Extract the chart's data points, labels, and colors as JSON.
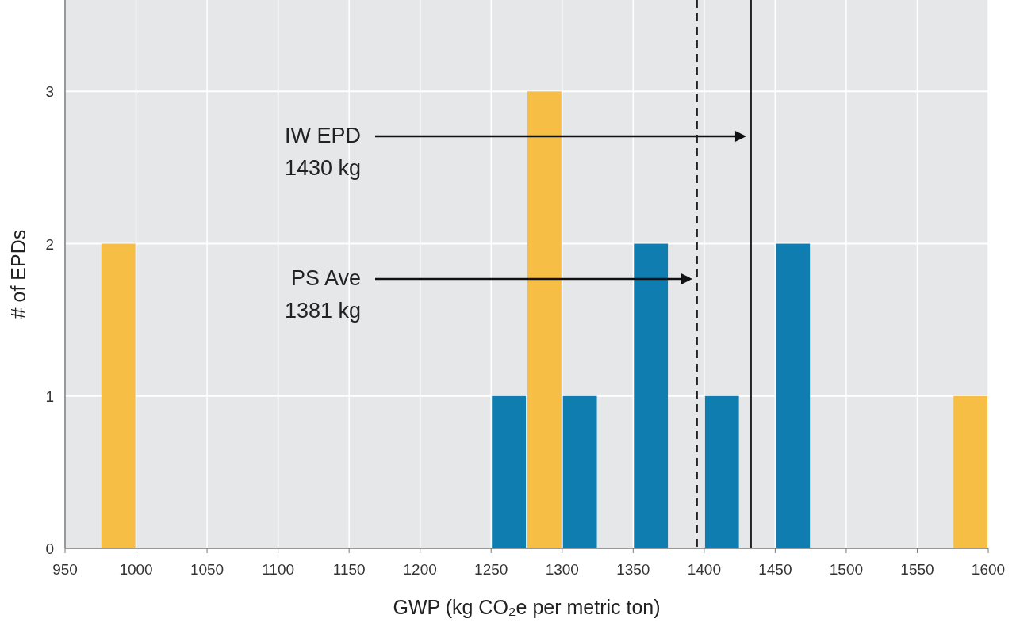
{
  "chart_data": {
    "type": "histogram",
    "xlabel": "GWP (kg CO₂e per metric ton)",
    "ylabel": "# of EPDs",
    "bins": [
      975,
      1000,
      1025,
      1050,
      1075,
      1100,
      1125,
      1150,
      1175,
      1200,
      1225,
      1250,
      1275,
      1300,
      1325,
      1350,
      1375,
      1400,
      1425,
      1450,
      1475,
      1500,
      1525,
      1550,
      1575,
      1600
    ],
    "values": [
      2,
      0,
      0,
      0,
      0,
      0,
      0,
      0,
      0,
      0,
      0,
      1,
      3,
      1,
      0,
      2,
      0,
      1,
      0,
      2,
      0,
      0,
      0,
      0,
      1
    ],
    "colors": [
      "#f7be45",
      "#f7be45",
      "#f7be45",
      "#f7be45",
      "#f7be45",
      "#f7be45",
      "#f7be45",
      "#f7be45",
      "#f7be45",
      "#f7be45",
      "#f7be45",
      "#0f7db0",
      "#f7be45",
      "#0f7db0",
      "#0f7db0",
      "#0f7db0",
      "#0f7db0",
      "#0f7db0",
      "#0f7db0",
      "#0f7db0",
      "#0f7db0",
      "#0f7db0",
      "#0f7db0",
      "#0f7db0",
      "#f7be45"
    ],
    "xlim": [
      950,
      1600
    ],
    "xticks": [
      950,
      1000,
      1050,
      1100,
      1150,
      1200,
      1250,
      1300,
      1350,
      1400,
      1450,
      1500,
      1550,
      1600
    ],
    "ylim": [
      0,
      3.6
    ],
    "yticks": [
      0,
      1,
      2,
      3
    ],
    "grid": true,
    "ref_lines": [
      {
        "axis": "x",
        "value": 1433,
        "line_style": "solid",
        "color": "#222222"
      },
      {
        "axis": "x",
        "value": 1395,
        "line_style": "dashed",
        "color": "#222222"
      }
    ],
    "annotations": [
      "IW EPD\n1430 kg",
      "PS Ave\n1381 kg"
    ]
  }
}
